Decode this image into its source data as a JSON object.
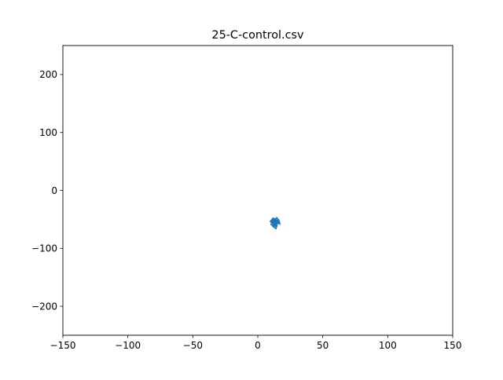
{
  "chart_data": {
    "type": "line",
    "title": "25-C-control.csv",
    "xlabel": "",
    "ylabel": "",
    "xlim": [
      -150,
      150
    ],
    "ylim": [
      -250,
      250
    ],
    "x_ticks": [
      -150,
      -100,
      -50,
      0,
      50,
      100,
      150
    ],
    "y_ticks": [
      -200,
      -100,
      0,
      100,
      200
    ],
    "x_tick_labels": [
      "−150",
      "−100",
      "−50",
      "0",
      "50",
      "100",
      "150"
    ],
    "y_tick_labels": [
      "−200",
      "−100",
      "0",
      "100",
      "200"
    ],
    "grid": false,
    "series": [
      {
        "color": "#1f77b4",
        "x": [
          12.0,
          13.5,
          11.2,
          14.8,
          10.5,
          12.9,
          15.6,
          13.1,
          9.8,
          11.7,
          14.2,
          16.4,
          12.5,
          10.1,
          13.8,
          15.1,
          11.4,
          9.6,
          12.2,
          14.6,
          16.9,
          13.3,
          10.8,
          12.7,
          15.3,
          14.0,
          11.1,
          13.6,
          17.2,
          15.8,
          12.4,
          10.3,
          13.0,
          14.9,
          12.1,
          13.7,
          11.5,
          14.4,
          12.8,
          13.9,
          12.6,
          14.1,
          15.5,
          13.2,
          11.9,
          14.7,
          16.1,
          13.4,
          12.3,
          14.3
        ],
        "y": [
          -52.0,
          -49.5,
          -55.8,
          -51.2,
          -57.4,
          -48.3,
          -53.9,
          -60.2,
          -54.1,
          -47.6,
          -56.7,
          -51.9,
          -50.4,
          -58.8,
          -62.5,
          -55.0,
          -49.1,
          -53.2,
          -57.9,
          -46.8,
          -54.6,
          -59.7,
          -51.6,
          -48.9,
          -56.1,
          -66.3,
          -61.2,
          -53.7,
          -58.4,
          -52.8,
          -49.8,
          -55.5,
          -57.1,
          -51.4,
          -54.9,
          -52.3,
          -50.9,
          -56.4,
          -53.5,
          -55.9,
          -51.1,
          -54.3,
          -52.5,
          -57.6,
          -53.0,
          -55.2,
          -50.7,
          -54.0,
          -52.7,
          -53.8
        ]
      }
    ]
  }
}
